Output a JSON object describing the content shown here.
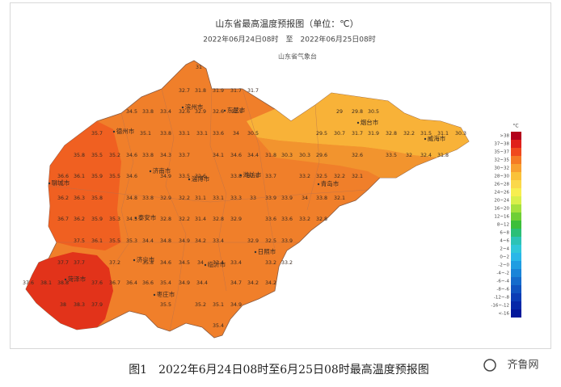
{
  "header": {
    "title": "山东省最高温度预报图（单位：℃）",
    "subtitle": "2022年06月24日08时　至　2022年06月25日08时",
    "agency": "山东省气象台"
  },
  "legend": {
    "unit": "°C",
    "items": [
      {
        "label": ">38",
        "color": "#b3001b"
      },
      {
        "label": "37~38",
        "color": "#e0201b"
      },
      {
        "label": "35~37",
        "color": "#f04a1e"
      },
      {
        "label": "32~35",
        "color": "#f57b25"
      },
      {
        "label": "30~32",
        "color": "#f8a030"
      },
      {
        "label": "28~30",
        "color": "#fac23a"
      },
      {
        "label": "26~28",
        "color": "#fbd84a"
      },
      {
        "label": "24~26",
        "color": "#f7ee50"
      },
      {
        "label": "20~24",
        "color": "#d9ef4b"
      },
      {
        "label": "16~20",
        "color": "#a5e13e"
      },
      {
        "label": "12~16",
        "color": "#6fcf36"
      },
      {
        "label": "8~12",
        "color": "#3cbf3a"
      },
      {
        "label": "6~8",
        "color": "#2bbf77"
      },
      {
        "label": "4~6",
        "color": "#2cc3b6"
      },
      {
        "label": "2~4",
        "color": "#2fc7d9"
      },
      {
        "label": "0~2",
        "color": "#29b7e8"
      },
      {
        "label": "-2~0",
        "color": "#1f9de2"
      },
      {
        "label": "-4~-2",
        "color": "#1a84d8"
      },
      {
        "label": "-6~-4",
        "color": "#156bcc"
      },
      {
        "label": "-8~-6",
        "color": "#1053c0"
      },
      {
        "label": "-12~-8",
        "color": "#0b3cb5"
      },
      {
        "label": "-16~-12",
        "color": "#0628a8"
      },
      {
        "label": "<-16",
        "color": "#03189a"
      }
    ]
  },
  "cities": [
    "滨州市",
    "东营市",
    "烟台市",
    "威海市",
    "德州市",
    "聊城市",
    "济南市",
    "淄博市",
    "潍坊市",
    "青岛市",
    "泰安市",
    "日照市",
    "临沂市",
    "济宁市",
    "菏泽市",
    "枣庄市"
  ],
  "stations": [
    31,
    32.7,
    31.8,
    31.9,
    31.7,
    31.7,
    34.5,
    33.8,
    33.4,
    32.6,
    32.9,
    32.6,
    32.9,
    29,
    29.8,
    30.5,
    35.7,
    35.1,
    33.8,
    33.1,
    33.1,
    33.6,
    34,
    30.5,
    29.5,
    30.7,
    31.7,
    31.9,
    32.8,
    32.2,
    31.5,
    31.1,
    30.3,
    35.8,
    35.5,
    35.2,
    34.6,
    33.8,
    34.3,
    33.7,
    34.1,
    34.6,
    34.4,
    31.8,
    30.3,
    30.3,
    29.6,
    32.6,
    33.5,
    32,
    32.4,
    31.8,
    36.6,
    36.1,
    35.9,
    35.5,
    34.6,
    34.9,
    33.5,
    32.6,
    33.8,
    32.9,
    33.7,
    33.2,
    32.5,
    32.2,
    32.1,
    36.2,
    36.3,
    35.8,
    34.8,
    33.8,
    32.9,
    32.2,
    31.1,
    33.1,
    33.3,
    33,
    33.9,
    33.9,
    34,
    33.8,
    32.1,
    36.7,
    36.2,
    35.9,
    35.3,
    34.5,
    32.8,
    32.2,
    31.4,
    32.8,
    32.9,
    33.6,
    33.6,
    33.2,
    32.8,
    37.5,
    36.1,
    35.5,
    35.3,
    34.4,
    34.8,
    34.9,
    34.2,
    33.4,
    32.9,
    32.5,
    33.9,
    37.7,
    37.7,
    37.2,
    35.8,
    34.6,
    34.5,
    34,
    33.4,
    33.4,
    33.2,
    33.2,
    37.6,
    38.1,
    38.8,
    37.6,
    36.7,
    36.4,
    36.6,
    35.4,
    34.9,
    34.4,
    34.7,
    34.2,
    34.2,
    38,
    38.3,
    37.9,
    35.5,
    35.2,
    35.1,
    34.9,
    35.4
  ],
  "caption": "图1　2022年6月24日08时至6月25日08时最高温度预报图",
  "watermark": "齐鲁网"
}
